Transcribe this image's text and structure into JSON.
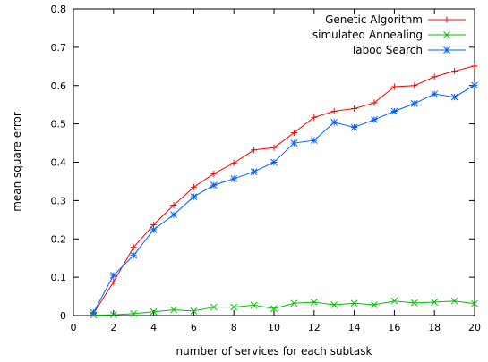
{
  "chart_data": {
    "type": "line",
    "xlabel": "number of services for each subtask",
    "ylabel": "mean square error",
    "xlim": [
      0,
      20
    ],
    "ylim": [
      0,
      0.8
    ],
    "xticks": [
      "0",
      "2",
      "4",
      "6",
      "8",
      "10",
      "12",
      "14",
      "16",
      "18",
      "20"
    ],
    "yticks": [
      "0",
      "0.1",
      "0.2",
      "0.3",
      "0.4",
      "0.5",
      "0.6",
      "0.7",
      "0.8"
    ],
    "grid": false,
    "legend_position": "top-right",
    "x": [
      1,
      2,
      3,
      4,
      5,
      6,
      7,
      8,
      9,
      10,
      11,
      12,
      13,
      14,
      15,
      16,
      17,
      18,
      19,
      20
    ],
    "series": [
      {
        "name": "Genetic Algorithm",
        "color": "#ff0000",
        "marker": "plus",
        "values": [
          0.005,
          0.088,
          0.178,
          0.237,
          0.288,
          0.335,
          0.37,
          0.398,
          0.432,
          0.438,
          0.477,
          0.517,
          0.533,
          0.54,
          0.555,
          0.597,
          0.6,
          0.623,
          0.638,
          0.651
        ]
      },
      {
        "name": "simulated Annealing",
        "color": "#00c000",
        "marker": "cross",
        "values": [
          0.001,
          0.002,
          0.005,
          0.01,
          0.015,
          0.012,
          0.022,
          0.022,
          0.027,
          0.018,
          0.032,
          0.035,
          0.028,
          0.032,
          0.028,
          0.038,
          0.033,
          0.035,
          0.038,
          0.031
        ]
      },
      {
        "name": "Taboo Search",
        "color": "#0060ff",
        "marker": "star",
        "values": [
          0.008,
          0.105,
          0.157,
          0.224,
          0.263,
          0.31,
          0.34,
          0.357,
          0.375,
          0.4,
          0.45,
          0.457,
          0.504,
          0.491,
          0.511,
          0.533,
          0.553,
          0.578,
          0.57,
          0.601
        ]
      }
    ]
  }
}
